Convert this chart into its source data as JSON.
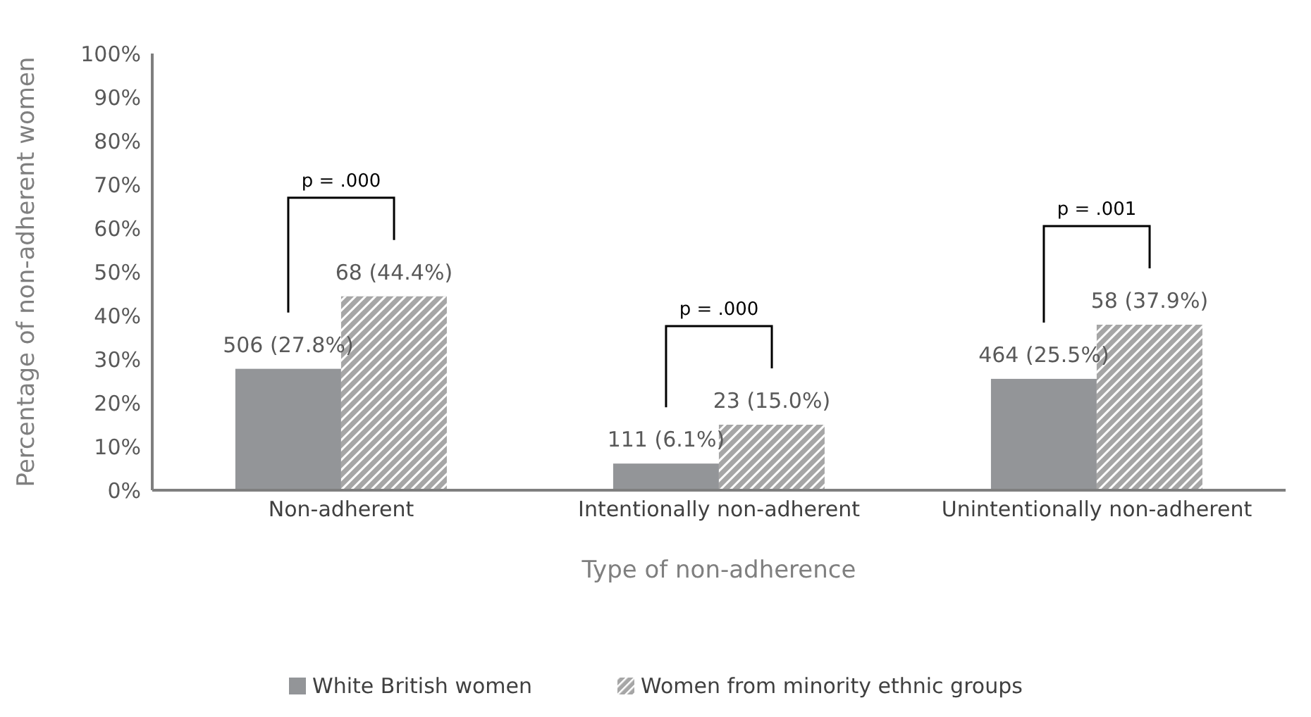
{
  "chart_data": {
    "type": "bar",
    "xlabel": "Type of non-adherence",
    "ylabel": "Percentage of non-adherent women",
    "categories": [
      "Non-adherent",
      "Intentionally non-adherent",
      "Unintentionally non-adherent"
    ],
    "series": [
      {
        "name": "White British women",
        "color": "#939598",
        "values": [
          27.8,
          6.1,
          25.5
        ],
        "value_labels": [
          "506 (27.8%)",
          "111 (6.1%)",
          "464 (25.5%)"
        ]
      },
      {
        "name": "Women from minority ethnic groups",
        "color": "#a6a6a6",
        "values": [
          44.4,
          15.0,
          37.9
        ],
        "value_labels": [
          "68 (44.4%)",
          "23 (15.0%)",
          "58 (37.9%)"
        ]
      }
    ],
    "ylim": [
      0,
      100
    ],
    "yticks": [
      {
        "value": 0,
        "label": "0%"
      },
      {
        "value": 10,
        "label": "10%"
      },
      {
        "value": 20,
        "label": "20%"
      },
      {
        "value": 30,
        "label": "30%"
      },
      {
        "value": 40,
        "label": "40%"
      },
      {
        "value": 50,
        "label": "50%"
      },
      {
        "value": 60,
        "label": "60%"
      },
      {
        "value": 70,
        "label": "70%"
      },
      {
        "value": 80,
        "label": "80%"
      },
      {
        "value": 90,
        "label": "90%"
      },
      {
        "value": 100,
        "label": "100%"
      }
    ],
    "annotations": [
      "p = .000",
      "p = .000",
      "p = .001"
    ],
    "grid": false,
    "legend": "bottom"
  }
}
